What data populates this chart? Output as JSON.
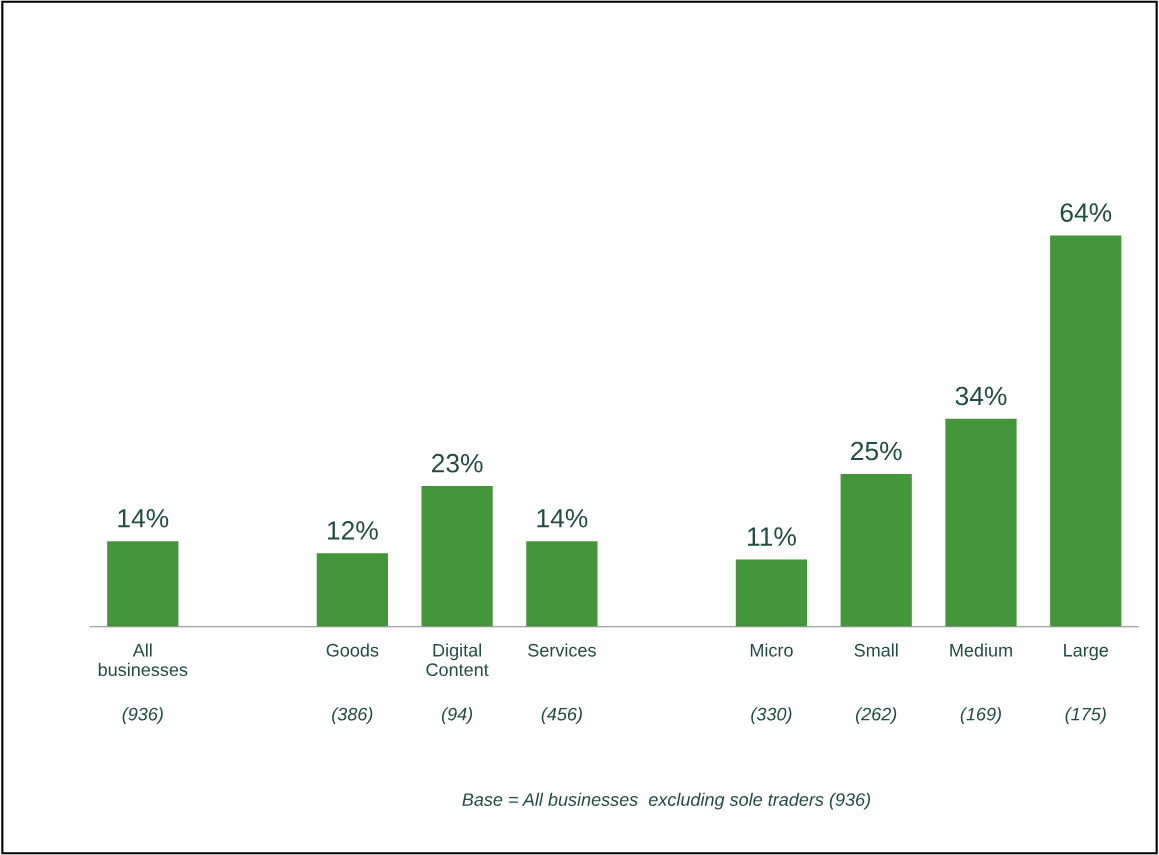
{
  "chart_data": {
    "type": "bar",
    "categories": [
      "All businesses",
      null,
      "Goods",
      "Digital Content",
      "Services",
      null,
      "Micro",
      "Small",
      "Medium",
      "Large"
    ],
    "values": [
      14,
      null,
      12,
      23,
      14,
      null,
      11,
      25,
      34,
      64
    ],
    "value_labels": [
      "14%",
      null,
      "12%",
      "23%",
      "14%",
      null,
      "11%",
      "25%",
      "34%",
      "64%"
    ],
    "color": "#43963a",
    "annotations": [
      "(936)",
      "(386)",
      "(94)",
      "(456)",
      "(330)",
      "(262)",
      "(169)",
      "(175)",
      "Base = All businesses  excluding sole traders (936)"
    ]
  }
}
